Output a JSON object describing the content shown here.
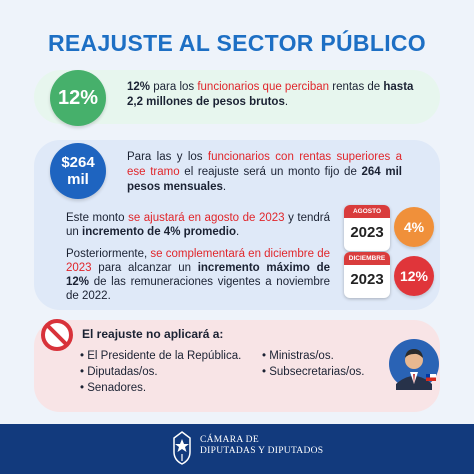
{
  "title": "REAJUSTE AL SECTOR PÚBLICO",
  "green": {
    "badge": "12%",
    "bold1": "12%",
    "t1": " para los ",
    "red1": "funcionarios que perciban",
    "t2": " rentas de ",
    "bold2": "hasta 2,2 millones de pesos brutos",
    "t3": "."
  },
  "blue": {
    "badge_line1": "$264",
    "badge_line2": "mil",
    "t1": "Para las y los ",
    "red1": "funcionarios con rentas superiores a ese tramo",
    "t2": " el reajuste será un monto fijo de ",
    "bold1": "264 mil pesos mensuales",
    "t3": "."
  },
  "p2": {
    "t1": "Este monto ",
    "red1": "se ajustará en agosto de 2023",
    "t2": " y tendrá un ",
    "bold1": "incremento de 4% promedio",
    "t3": "."
  },
  "p3": {
    "t1": "Posteriormente, ",
    "red1": "se complementará en diciembre de 2023",
    "t2": " para alcanzar un ",
    "bold1": "incremento máximo de 12%",
    "t3": " de las remuneraciones vigentes a noviembre de 2022."
  },
  "cal1": {
    "month": "AGOSTO",
    "year": "2023",
    "pct": "4%"
  },
  "cal2": {
    "month": "DICIEMBRE",
    "year": "2023",
    "pct": "12%"
  },
  "exclusions": {
    "heading": "El reajuste no aplicará a:",
    "col1": [
      "El Presidente de la República.",
      "Diputadas/os.",
      "Senadores."
    ],
    "col2": [
      "Ministras/os.",
      "Subsecretarias/os."
    ]
  },
  "footer": {
    "line1": "CÁMARA DE",
    "line2": "DIPUTADAS Y DIPUTADOS"
  },
  "colors": {
    "title": "#1d6fc4",
    "green": "#46b06b",
    "blue": "#1e64c0",
    "orange": "#f0903a",
    "red": "#e0353a",
    "footer": "#123a7d"
  },
  "icons": [
    "prohibited-icon",
    "politician-avatar-icon",
    "calendar-icon",
    "crest-icon"
  ]
}
